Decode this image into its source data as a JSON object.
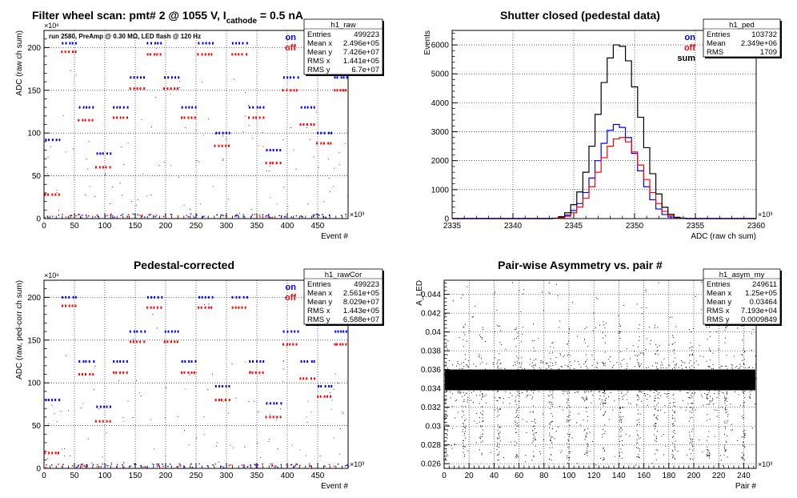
{
  "colors": {
    "on": "#0000ff",
    "off": "#ff0000",
    "sum": "#000000",
    "frame": "#000000",
    "grid": "#000000"
  },
  "chart_data": [
    {
      "type": "scatter",
      "title": "Filter wheel scan: pmt#   2 @  1055 V, I",
      "title_subscript": "cathode",
      "title_suffix": " = 0.5 nA",
      "annotation": "run 2580, PreAmp @ 0.30 MΩ, LED flash @  120 Hz",
      "xlabel": "Event #",
      "ylabel": "ADC (raw ch sum)",
      "x_multiplier": "×10³",
      "y_multiplier": "×10⁶",
      "xlim": [
        0,
        500
      ],
      "ylim": [
        0,
        220
      ],
      "xticks": [
        0,
        50,
        100,
        150,
        200,
        250,
        300,
        350,
        400,
        450
      ],
      "yticks": [
        0,
        50,
        100,
        150,
        200
      ],
      "legend": [
        "on",
        "off"
      ],
      "series_colors": [
        "#0000ff",
        "#ff0000"
      ],
      "step_boundaries": [
        0,
        28,
        56,
        84,
        112,
        140,
        168,
        196,
        224,
        252,
        280,
        308,
        336,
        364,
        392,
        420,
        448,
        476,
        500
      ],
      "levels": [
        {
          "x_start": 0,
          "on": 92,
          "off": 28
        },
        {
          "x_start": 28,
          "on": 205,
          "off": 195
        },
        {
          "x_start": 56,
          "on": 130,
          "off": 115
        },
        {
          "x_start": 84,
          "on": 76,
          "off": 60
        },
        {
          "x_start": 112,
          "on": 130,
          "off": 118
        },
        {
          "x_start": 140,
          "on": 165,
          "off": 152
        },
        {
          "x_start": 168,
          "on": 205,
          "off": 192
        },
        {
          "x_start": 196,
          "on": 165,
          "off": 152
        },
        {
          "x_start": 224,
          "on": 130,
          "off": 118
        },
        {
          "x_start": 252,
          "on": 205,
          "off": 192
        },
        {
          "x_start": 280,
          "on": 100,
          "off": 85
        },
        {
          "x_start": 308,
          "on": 205,
          "off": 192
        },
        {
          "x_start": 336,
          "on": 130,
          "off": 118
        },
        {
          "x_start": 364,
          "on": 80,
          "off": 65
        },
        {
          "x_start": 392,
          "on": 165,
          "off": 150
        },
        {
          "x_start": 420,
          "on": 130,
          "off": 110
        },
        {
          "x_start": 448,
          "on": 100,
          "off": 88
        },
        {
          "x_start": 476,
          "on": 165,
          "off": 150
        }
      ],
      "stats": {
        "name": "h1_raw",
        "rows": [
          {
            "label": "Entries",
            "value": "499223"
          },
          {
            "label": "Mean x",
            "value": "2.496e+05"
          },
          {
            "label": "Mean y",
            "value": "7.426e+07"
          },
          {
            "label": "RMS x",
            "value": "1.441e+05"
          },
          {
            "label": "RMS y",
            "value": "6.7e+07"
          }
        ]
      }
    },
    {
      "type": "line",
      "title": "Shutter closed (pedestal data)",
      "xlabel": "ADC (raw ch sum)",
      "ylabel": "Events",
      "x_multiplier": "×10³",
      "xlim": [
        2335,
        2360
      ],
      "ylim": [
        0,
        6500
      ],
      "xticks": [
        2335,
        2340,
        2345,
        2350,
        2355,
        2360
      ],
      "yticks": [
        0,
        1000,
        2000,
        3000,
        4000,
        5000,
        6000
      ],
      "legend": [
        "on",
        "off",
        "sum"
      ],
      "series": [
        {
          "name": "on",
          "color": "#0000ff",
          "x": [
            2343.5,
            2344,
            2344.5,
            2345,
            2345.5,
            2346,
            2346.5,
            2347,
            2347.5,
            2348,
            2348.5,
            2349,
            2349.5,
            2350,
            2350.5,
            2351,
            2351.5,
            2352,
            2352.5,
            2353,
            2353.5,
            2354
          ],
          "values": [
            10,
            40,
            120,
            280,
            520,
            900,
            1400,
            2000,
            2600,
            3050,
            3250,
            3150,
            2800,
            2250,
            1650,
            1100,
            650,
            330,
            140,
            50,
            15,
            5
          ]
        },
        {
          "name": "off",
          "color": "#ff0000",
          "x": [
            2343.5,
            2344,
            2344.5,
            2345,
            2345.5,
            2346,
            2346.5,
            2347,
            2347.5,
            2348,
            2348.5,
            2349,
            2349.5,
            2350,
            2350.5,
            2351,
            2351.5,
            2352,
            2352.5,
            2353,
            2353.5,
            2354
          ],
          "values": [
            5,
            25,
            80,
            200,
            400,
            700,
            1100,
            1600,
            2100,
            2500,
            2750,
            2800,
            2650,
            2300,
            1850,
            1350,
            900,
            520,
            250,
            100,
            30,
            8
          ]
        },
        {
          "name": "sum",
          "color": "#000000",
          "x": [
            2343.5,
            2344,
            2344.5,
            2345,
            2345.5,
            2346,
            2346.5,
            2347,
            2347.5,
            2348,
            2348.5,
            2349,
            2349.5,
            2350,
            2350.5,
            2351,
            2351.5,
            2352,
            2352.5,
            2353,
            2353.5,
            2354
          ],
          "values": [
            15,
            65,
            200,
            480,
            920,
            1600,
            2500,
            3600,
            4700,
            5550,
            6000,
            5950,
            5450,
            4550,
            3500,
            2450,
            1550,
            850,
            390,
            150,
            45,
            13
          ]
        }
      ],
      "stats": {
        "name": "h1_ped",
        "rows": [
          {
            "label": "Entries",
            "value": "103732"
          },
          {
            "label": "Mean",
            "value": "2.349e+06"
          },
          {
            "label": "RMS",
            "value": "1709"
          }
        ]
      }
    },
    {
      "type": "scatter",
      "title": "Pedestal-corrected",
      "xlabel": "Event #",
      "ylabel": "ADC (raw, ped-corr ch sum)",
      "x_multiplier": "×10³",
      "y_multiplier": "×10⁶",
      "xlim": [
        0,
        500
      ],
      "ylim": [
        0,
        220
      ],
      "xticks": [
        0,
        50,
        100,
        150,
        200,
        250,
        300,
        350,
        400,
        450
      ],
      "yticks": [
        0,
        50,
        100,
        150,
        200
      ],
      "legend": [
        "on",
        "off"
      ],
      "series_colors": [
        "#0000ff",
        "#ff0000"
      ],
      "step_boundaries": [
        0,
        28,
        56,
        84,
        112,
        140,
        168,
        196,
        224,
        252,
        280,
        308,
        336,
        364,
        392,
        420,
        448,
        476,
        500
      ],
      "levels": [
        {
          "x_start": 0,
          "on": 80,
          "off": 18
        },
        {
          "x_start": 28,
          "on": 200,
          "off": 190
        },
        {
          "x_start": 56,
          "on": 125,
          "off": 110
        },
        {
          "x_start": 84,
          "on": 72,
          "off": 55
        },
        {
          "x_start": 112,
          "on": 125,
          "off": 112
        },
        {
          "x_start": 140,
          "on": 160,
          "off": 148
        },
        {
          "x_start": 168,
          "on": 200,
          "off": 188
        },
        {
          "x_start": 196,
          "on": 160,
          "off": 148
        },
        {
          "x_start": 224,
          "on": 125,
          "off": 112
        },
        {
          "x_start": 252,
          "on": 200,
          "off": 188
        },
        {
          "x_start": 280,
          "on": 96,
          "off": 80
        },
        {
          "x_start": 308,
          "on": 200,
          "off": 188
        },
        {
          "x_start": 336,
          "on": 125,
          "off": 112
        },
        {
          "x_start": 364,
          "on": 76,
          "off": 60
        },
        {
          "x_start": 392,
          "on": 160,
          "off": 145
        },
        {
          "x_start": 420,
          "on": 125,
          "off": 105
        },
        {
          "x_start": 448,
          "on": 96,
          "off": 84
        },
        {
          "x_start": 476,
          "on": 160,
          "off": 145
        }
      ],
      "stats": {
        "name": "h1_rawCor",
        "rows": [
          {
            "label": "Entries",
            "value": "499223"
          },
          {
            "label": "Mean x",
            "value": "2.561e+05"
          },
          {
            "label": "Mean y",
            "value": "8.029e+07"
          },
          {
            "label": "RMS x",
            "value": "1.443e+05"
          },
          {
            "label": "RMS y",
            "value": "6.588e+07"
          }
        ]
      }
    },
    {
      "type": "scatter",
      "title": "Pair-wise Asymmetry vs. pair #",
      "xlabel": "Pair #",
      "ylabel": "A_LED",
      "x_multiplier": "×10³",
      "xlim": [
        0,
        250
      ],
      "ylim": [
        0.0255,
        0.0455
      ],
      "xticks": [
        0,
        20,
        40,
        60,
        80,
        100,
        120,
        140,
        160,
        180,
        200,
        220,
        240
      ],
      "yticks": [
        0.026,
        0.028,
        0.03,
        0.032,
        0.034,
        0.036,
        0.038,
        0.04,
        0.042,
        0.044
      ],
      "ytick_labels": [
        "0.026",
        "0.028",
        "0.03",
        "0.032",
        "0.034",
        "0.036",
        "0.038",
        "0.04",
        "0.042",
        "0.044"
      ],
      "band": {
        "center": 0.0349,
        "half_width": 0.0011
      },
      "spike_x": [
        0,
        14,
        28,
        42,
        56,
        70,
        84,
        98,
        112,
        126,
        140,
        154,
        168,
        182,
        196,
        210,
        224,
        238
      ],
      "series_colors": [
        "#000000"
      ],
      "stats": {
        "name": "h1_asym_my",
        "rows": [
          {
            "label": "Entries",
            "value": "249611"
          },
          {
            "label": "Mean x",
            "value": "1.25e+05"
          },
          {
            "label": "Mean y",
            "value": "0.03464"
          },
          {
            "label": "RMS x",
            "value": "7.193e+04"
          },
          {
            "label": "RMS y",
            "value": "0.0009849"
          }
        ]
      }
    }
  ]
}
